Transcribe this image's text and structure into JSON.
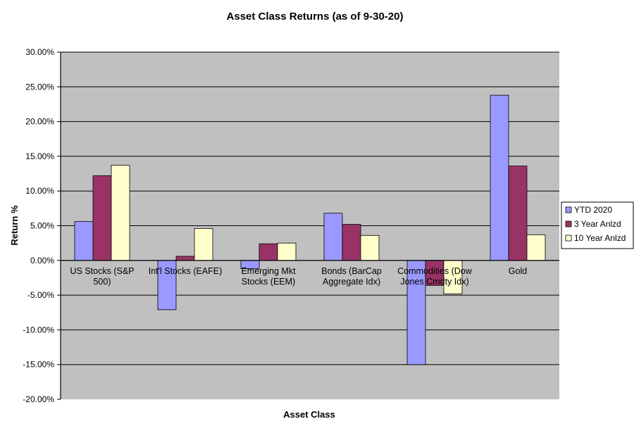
{
  "chart_data": {
    "type": "bar",
    "title": "Asset Class Returns (as of 9-30-20)",
    "xlabel": "Asset Class",
    "ylabel": "Return %",
    "ylim": [
      -20,
      30
    ],
    "ytick_step": 5,
    "ytick_format": "percent_2dp",
    "grid": true,
    "legend_position": "right",
    "categories": [
      [
        "US Stocks (S&P",
        "500)"
      ],
      [
        "Int'l Stocks (EAFE)"
      ],
      [
        "Emerging Mkt",
        "Stocks (EEM)"
      ],
      [
        "Bonds (BarCap",
        "Aggregate Idx)"
      ],
      [
        "Commodities (Dow",
        "Jones Cmdty Idx)"
      ],
      [
        "Gold"
      ]
    ],
    "series": [
      {
        "name": "YTD 2020",
        "color": "#9999ff",
        "values": [
          5.6,
          -7.1,
          -1.2,
          6.8,
          -15.0,
          23.8
        ]
      },
      {
        "name": "3 Year Anlzd",
        "color": "#993366",
        "values": [
          12.2,
          0.6,
          2.4,
          5.2,
          -3.6,
          13.6
        ]
      },
      {
        "name": "10 Year Anlzd",
        "color": "#ffffcc",
        "values": [
          13.7,
          4.6,
          2.5,
          3.6,
          -4.8,
          3.7
        ]
      }
    ],
    "colors": {
      "plot_background": "#c0c0c0",
      "gridline": "#000000",
      "axis": "#000000"
    }
  }
}
